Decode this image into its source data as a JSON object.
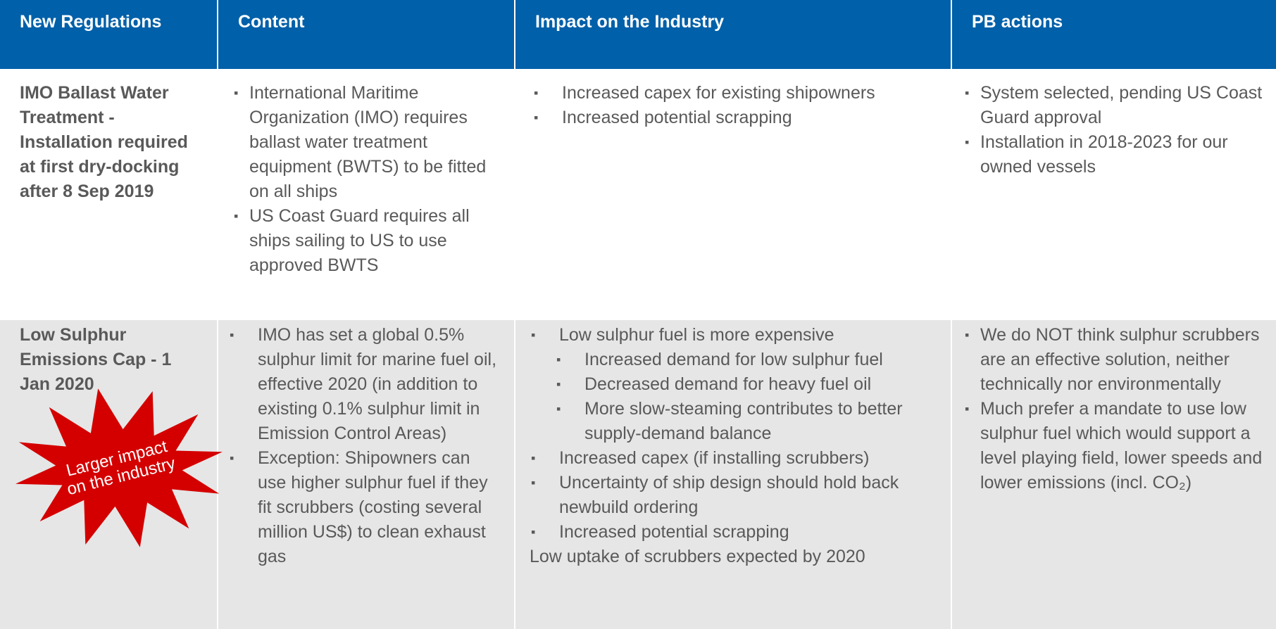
{
  "header": [
    "New Regulations",
    "Content",
    "Impact on the Industry",
    "PB actions"
  ],
  "rows": [
    {
      "regulation": "IMO Ballast Water Treatment - Installation required at first dry-docking after 8 Sep 2019",
      "content": [
        "International Maritime Organization (IMO) requires ballast water treatment equipment (BWTS) to be fitted on all ships",
        "US Coast Guard requires all ships sailing to US to use approved BWTS"
      ],
      "impact": [
        {
          "text": "Increased capex for existing shipowners"
        },
        {
          "text": "Increased potential scrapping"
        }
      ],
      "actions": [
        "System selected, pending US Coast Guard approval",
        "Installation in 2018-2023 for our owned vessels"
      ]
    },
    {
      "regulation": "Low Sulphur Emissions Cap - 1 Jan 2020",
      "content": [
        "IMO has set a global 0.5% sulphur limit for marine fuel oil, effective 2020 (in addition to existing 0.1% sulphur limit in Emission Control Areas)",
        "Exception: Shipowners can use higher sulphur fuel if they fit scrubbers (costing several million US$) to clean exhaust gas"
      ],
      "impact": [
        {
          "text": "Low sulphur fuel is more expensive",
          "sub": [
            "Increased demand for low sulphur fuel",
            "Decreased demand for heavy fuel oil",
            "More slow-steaming contributes to better supply-demand balance"
          ]
        },
        {
          "text": "Increased capex (if installing scrubbers)"
        },
        {
          "text": "Uncertainty of ship design should hold back newbuild ordering"
        },
        {
          "text": "Increased potential scrapping"
        }
      ],
      "impact_note": "Low uptake of scrubbers expected by 2020",
      "actions": [
        "We do NOT think sulphur scrubbers are an effective solution, neither technically nor environmentally",
        "Much prefer a mandate to use low sulphur fuel which would support a level playing field, lower speeds and lower emissions (incl. CO₂)"
      ],
      "callout": [
        "Larger impact",
        "on the industry"
      ]
    }
  ]
}
